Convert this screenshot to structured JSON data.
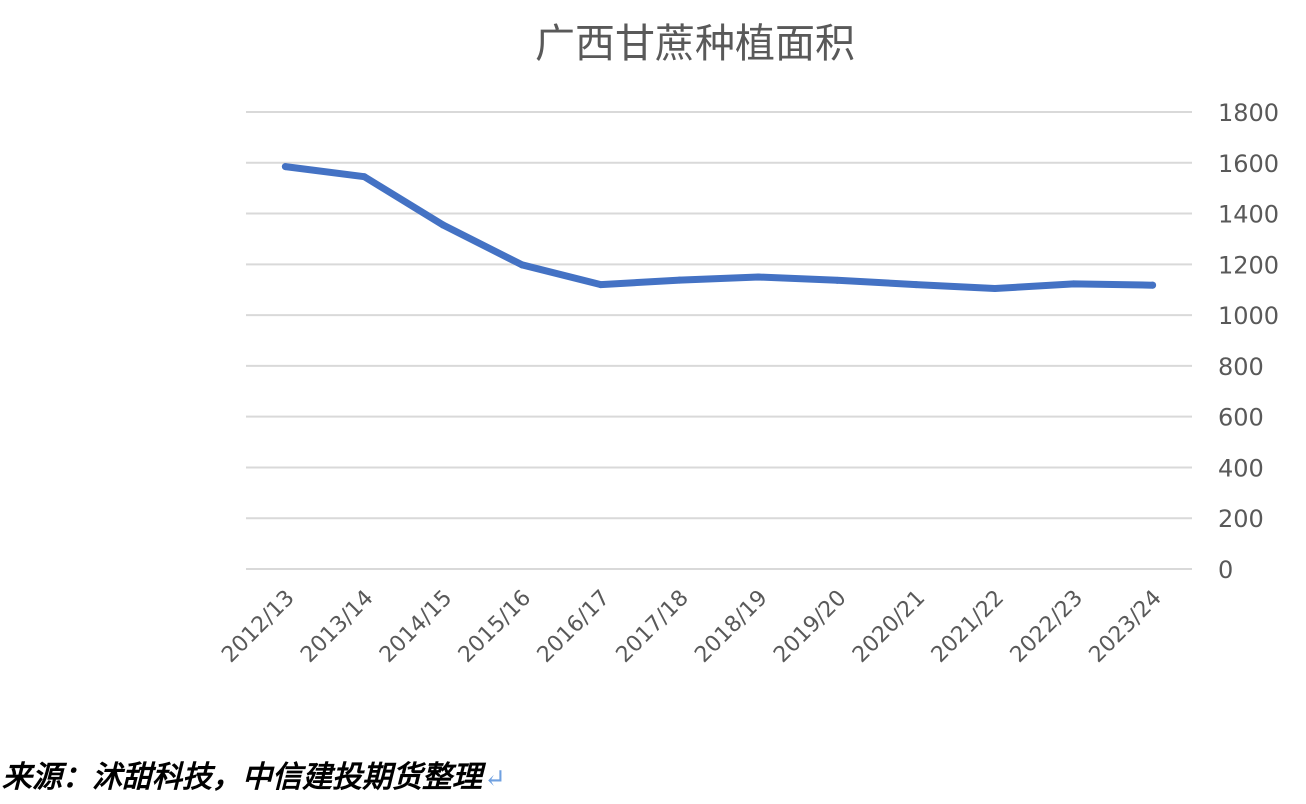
{
  "chart_data": {
    "type": "line",
    "title": "广西甘蔗种植面积",
    "xlabel": "",
    "ylabel": "",
    "categories": [
      "2012/13",
      "2013/14",
      "2014/15",
      "2015/16",
      "2016/17",
      "2017/18",
      "2018/19",
      "2019/20",
      "2020/21",
      "2021/22",
      "2022/23",
      "2023/24"
    ],
    "series": [
      {
        "values": [
          1585,
          1545,
          1355,
          1198,
          1120,
          1138,
          1150,
          1137,
          1120,
          1105,
          1123,
          1118
        ],
        "color": "#4472c4"
      }
    ],
    "ylim": [
      0,
      1800
    ],
    "yticks": [
      "0",
      "200",
      "400",
      "600",
      "800",
      "1000",
      "1200",
      "1400",
      "1600",
      "1800"
    ],
    "y_axis_position": "right",
    "grid": true,
    "legend": "none"
  },
  "footer": {
    "source_text": "来源：沭甜科技，中信建投期货整理",
    "return_mark": "↵"
  }
}
